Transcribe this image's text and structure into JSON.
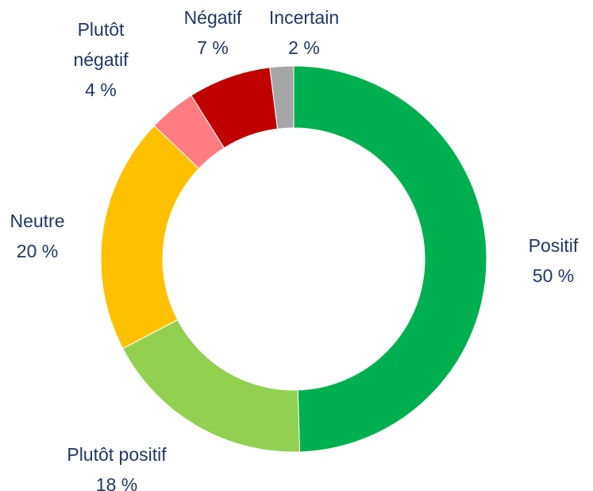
{
  "chart_data": {
    "type": "donut",
    "categories": [
      "Positif",
      "Plutôt positif",
      "Neutre",
      "Plutôt négatif",
      "Négatif",
      "Incertain"
    ],
    "values": [
      50,
      18,
      20,
      4,
      7,
      2
    ],
    "value_labels": [
      "50 %",
      "18 %",
      "20 %",
      "4 %",
      "7 %",
      "2 %"
    ],
    "colors": [
      "#00b050",
      "#92d050",
      "#ffc000",
      "#ff7c80",
      "#c00000",
      "#a6a6a6"
    ]
  }
}
